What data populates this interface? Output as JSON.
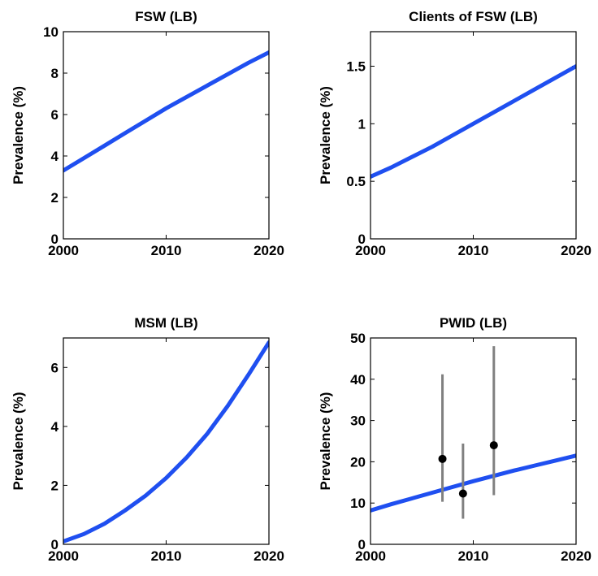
{
  "chart_data": [
    {
      "type": "line",
      "title": "FSW (LB)",
      "ylabel": "Prevalence (%)",
      "xlim": [
        2000,
        2020
      ],
      "ylim": [
        0,
        10
      ],
      "xticks": [
        2000,
        2010,
        2020
      ],
      "yticks": [
        0,
        2,
        4,
        6,
        8,
        10
      ],
      "ytick_labels": [
        "0",
        "2",
        "4",
        "6",
        "8",
        "10"
      ],
      "line_color": "#1f4ff0",
      "series": [
        {
          "x": [
            2000,
            2002,
            2004,
            2006,
            2008,
            2010,
            2012,
            2014,
            2016,
            2018,
            2020
          ],
          "y": [
            3.3,
            3.9,
            4.5,
            5.1,
            5.7,
            6.3,
            6.85,
            7.4,
            7.95,
            8.5,
            9.0
          ]
        }
      ]
    },
    {
      "type": "line",
      "title": "Clients of FSW (LB)",
      "ylabel": "Prevalence (%)",
      "xlim": [
        2000,
        2020
      ],
      "ylim": [
        0,
        1.8
      ],
      "xticks": [
        2000,
        2010,
        2020
      ],
      "yticks": [
        0,
        0.5,
        1,
        1.5
      ],
      "ytick_labels": [
        "0",
        "0.5",
        "1",
        "1.5"
      ],
      "line_color": "#1f4ff0",
      "series": [
        {
          "x": [
            2000,
            2002,
            2004,
            2006,
            2008,
            2010,
            2012,
            2014,
            2016,
            2018,
            2020
          ],
          "y": [
            0.54,
            0.62,
            0.71,
            0.8,
            0.9,
            1.0,
            1.1,
            1.2,
            1.3,
            1.4,
            1.5
          ]
        }
      ]
    },
    {
      "type": "line",
      "title": "MSM (LB)",
      "ylabel": "Prevalence (%)",
      "xlim": [
        2000,
        2020
      ],
      "ylim": [
        0,
        7
      ],
      "xticks": [
        2000,
        2010,
        2020
      ],
      "yticks": [
        0,
        2,
        4,
        6
      ],
      "ytick_labels": [
        "0",
        "2",
        "4",
        "6"
      ],
      "line_color": "#1f4ff0",
      "series": [
        {
          "x": [
            2000,
            2002,
            2004,
            2006,
            2008,
            2010,
            2012,
            2014,
            2016,
            2018,
            2020
          ],
          "y": [
            0.1,
            0.35,
            0.7,
            1.15,
            1.65,
            2.25,
            2.95,
            3.75,
            4.7,
            5.75,
            6.85
          ]
        }
      ]
    },
    {
      "type": "line",
      "title": "PWID (LB)",
      "ylabel": "Prevalence (%)",
      "xlim": [
        2000,
        2020
      ],
      "ylim": [
        0,
        50
      ],
      "xticks": [
        2000,
        2010,
        2020
      ],
      "yticks": [
        0,
        10,
        20,
        30,
        40,
        50
      ],
      "ytick_labels": [
        "0",
        "10",
        "20",
        "30",
        "40",
        "50"
      ],
      "line_color": "#1f4ff0",
      "series": [
        {
          "x": [
            2000,
            2002,
            2004,
            2006,
            2008,
            2010,
            2012,
            2014,
            2016,
            2018,
            2020
          ],
          "y": [
            8.2,
            9.7,
            11.1,
            12.5,
            13.9,
            15.3,
            16.6,
            17.9,
            19.1,
            20.3,
            21.5
          ]
        }
      ],
      "points": [
        {
          "x": 2007,
          "y": 20.7,
          "low": 10.3,
          "high": 41.2
        },
        {
          "x": 2009,
          "y": 12.3,
          "low": 6.2,
          "high": 24.4
        },
        {
          "x": 2012,
          "y": 24.0,
          "low": 11.9,
          "high": 48.0
        }
      ],
      "point_color": "#000000",
      "errorbar_color": "#808080"
    }
  ]
}
